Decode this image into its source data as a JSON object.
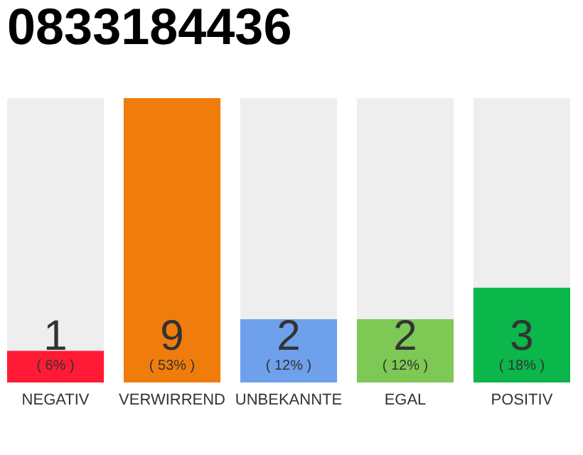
{
  "chart_data": {
    "type": "bar",
    "title": "0833184436",
    "categories": [
      "NEGATIV",
      "VERWIRREND",
      "UNBEKANNTE",
      "EGAL",
      "POSITIV"
    ],
    "values": [
      1,
      9,
      2,
      2,
      3
    ],
    "colors": [
      "#ff1a35",
      "#f07c0c",
      "#6ea0ec",
      "#7ec855",
      "#0bb64a"
    ],
    "ylim": [
      0,
      9
    ],
    "data_labels": true,
    "annotations": [
      "( 6% )",
      "( 53% )",
      "( 12% )",
      "( 12% )",
      "( 18% )"
    ]
  }
}
